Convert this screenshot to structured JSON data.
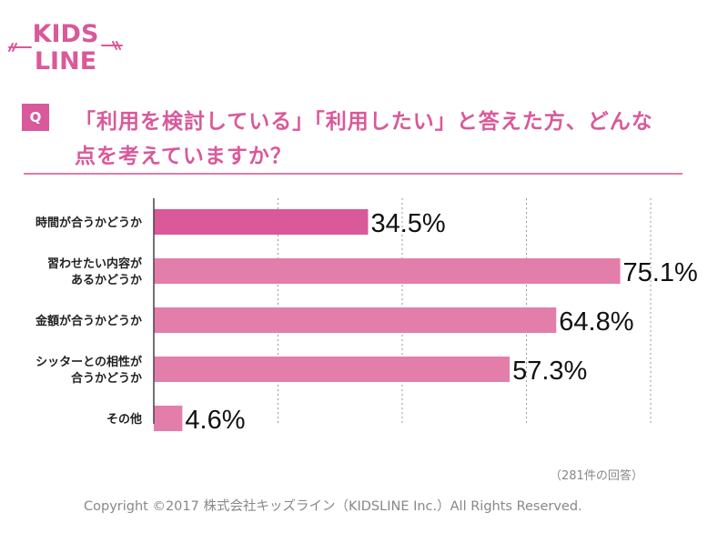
{
  "brand": {
    "logo_line1": "KIDS",
    "logo_line2": "LINE"
  },
  "header": {
    "badge": "Q",
    "title_line1": "「利用を検討している」「利用したい」と答えた方、どんな",
    "title_line2": "点を考えていますか？"
  },
  "chart_data": {
    "type": "bar",
    "orientation": "horizontal",
    "categories": [
      [
        "時間が合うかどうか"
      ],
      [
        "習わせたい内容が",
        "あるかどうか"
      ],
      [
        "金額が合うかどうか"
      ],
      [
        "シッターとの相性が",
        "合うかどうか"
      ],
      [
        "その他"
      ]
    ],
    "values": [
      34.5,
      75.1,
      64.8,
      57.3,
      4.6
    ],
    "value_labels": [
      "34.5%",
      "75.1%",
      "64.8%",
      "57.3%",
      "4.6%"
    ],
    "unit": "%",
    "xlim": [
      0,
      80
    ],
    "grid": true,
    "highlight_index": 0
  },
  "colors": {
    "accent": "#d9599a",
    "bar": "#e37eab",
    "bar_highlight": "#d9599a",
    "grid": "#999999"
  },
  "footer": {
    "note": "（281件の回答）",
    "copyright": "Copyright ©2017 株式会社キッズライン（KIDSLINE Inc.）All Rights Reserved."
  }
}
